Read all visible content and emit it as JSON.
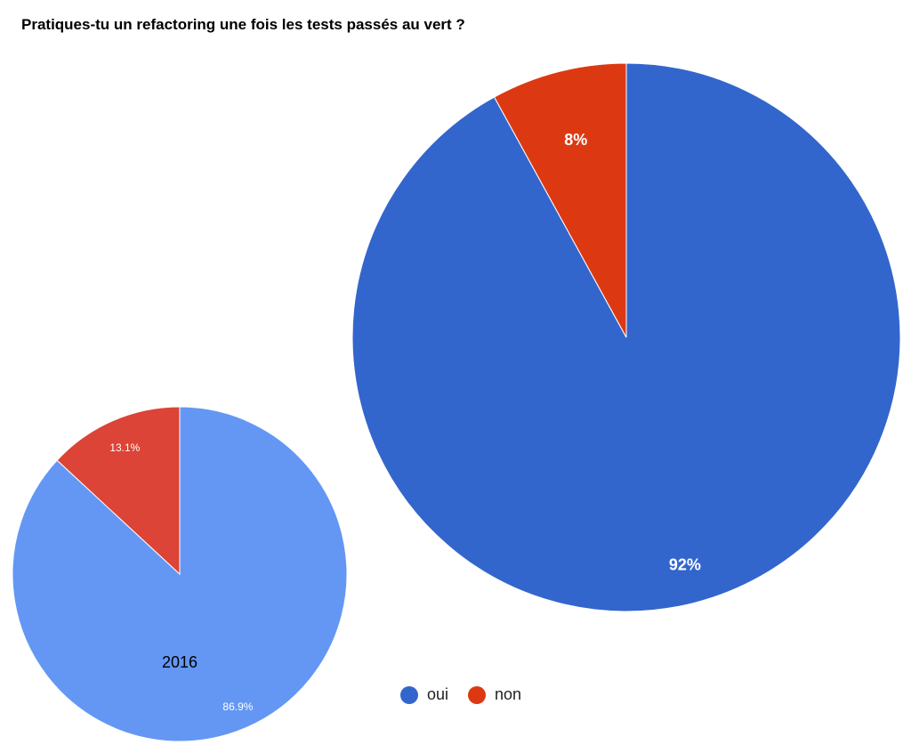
{
  "chart_data": [
    {
      "type": "pie",
      "title": "Pratiques-tu un refactoring une fois les tests passés au vert ?",
      "categories": [
        "oui",
        "non"
      ],
      "values": [
        92,
        8
      ],
      "data_labels": [
        "92%",
        "8%"
      ],
      "colors": [
        "#3366cc",
        "#dc3912"
      ],
      "legend": [
        "oui",
        "non"
      ],
      "legend_placement": "bottom"
    },
    {
      "type": "pie",
      "title": "2016",
      "categories": [
        "oui",
        "non"
      ],
      "values": [
        86.9,
        13.1
      ],
      "data_labels": [
        "86.9%",
        "13.1%"
      ],
      "colors": [
        "#6497f4",
        "#db4437"
      ]
    }
  ]
}
